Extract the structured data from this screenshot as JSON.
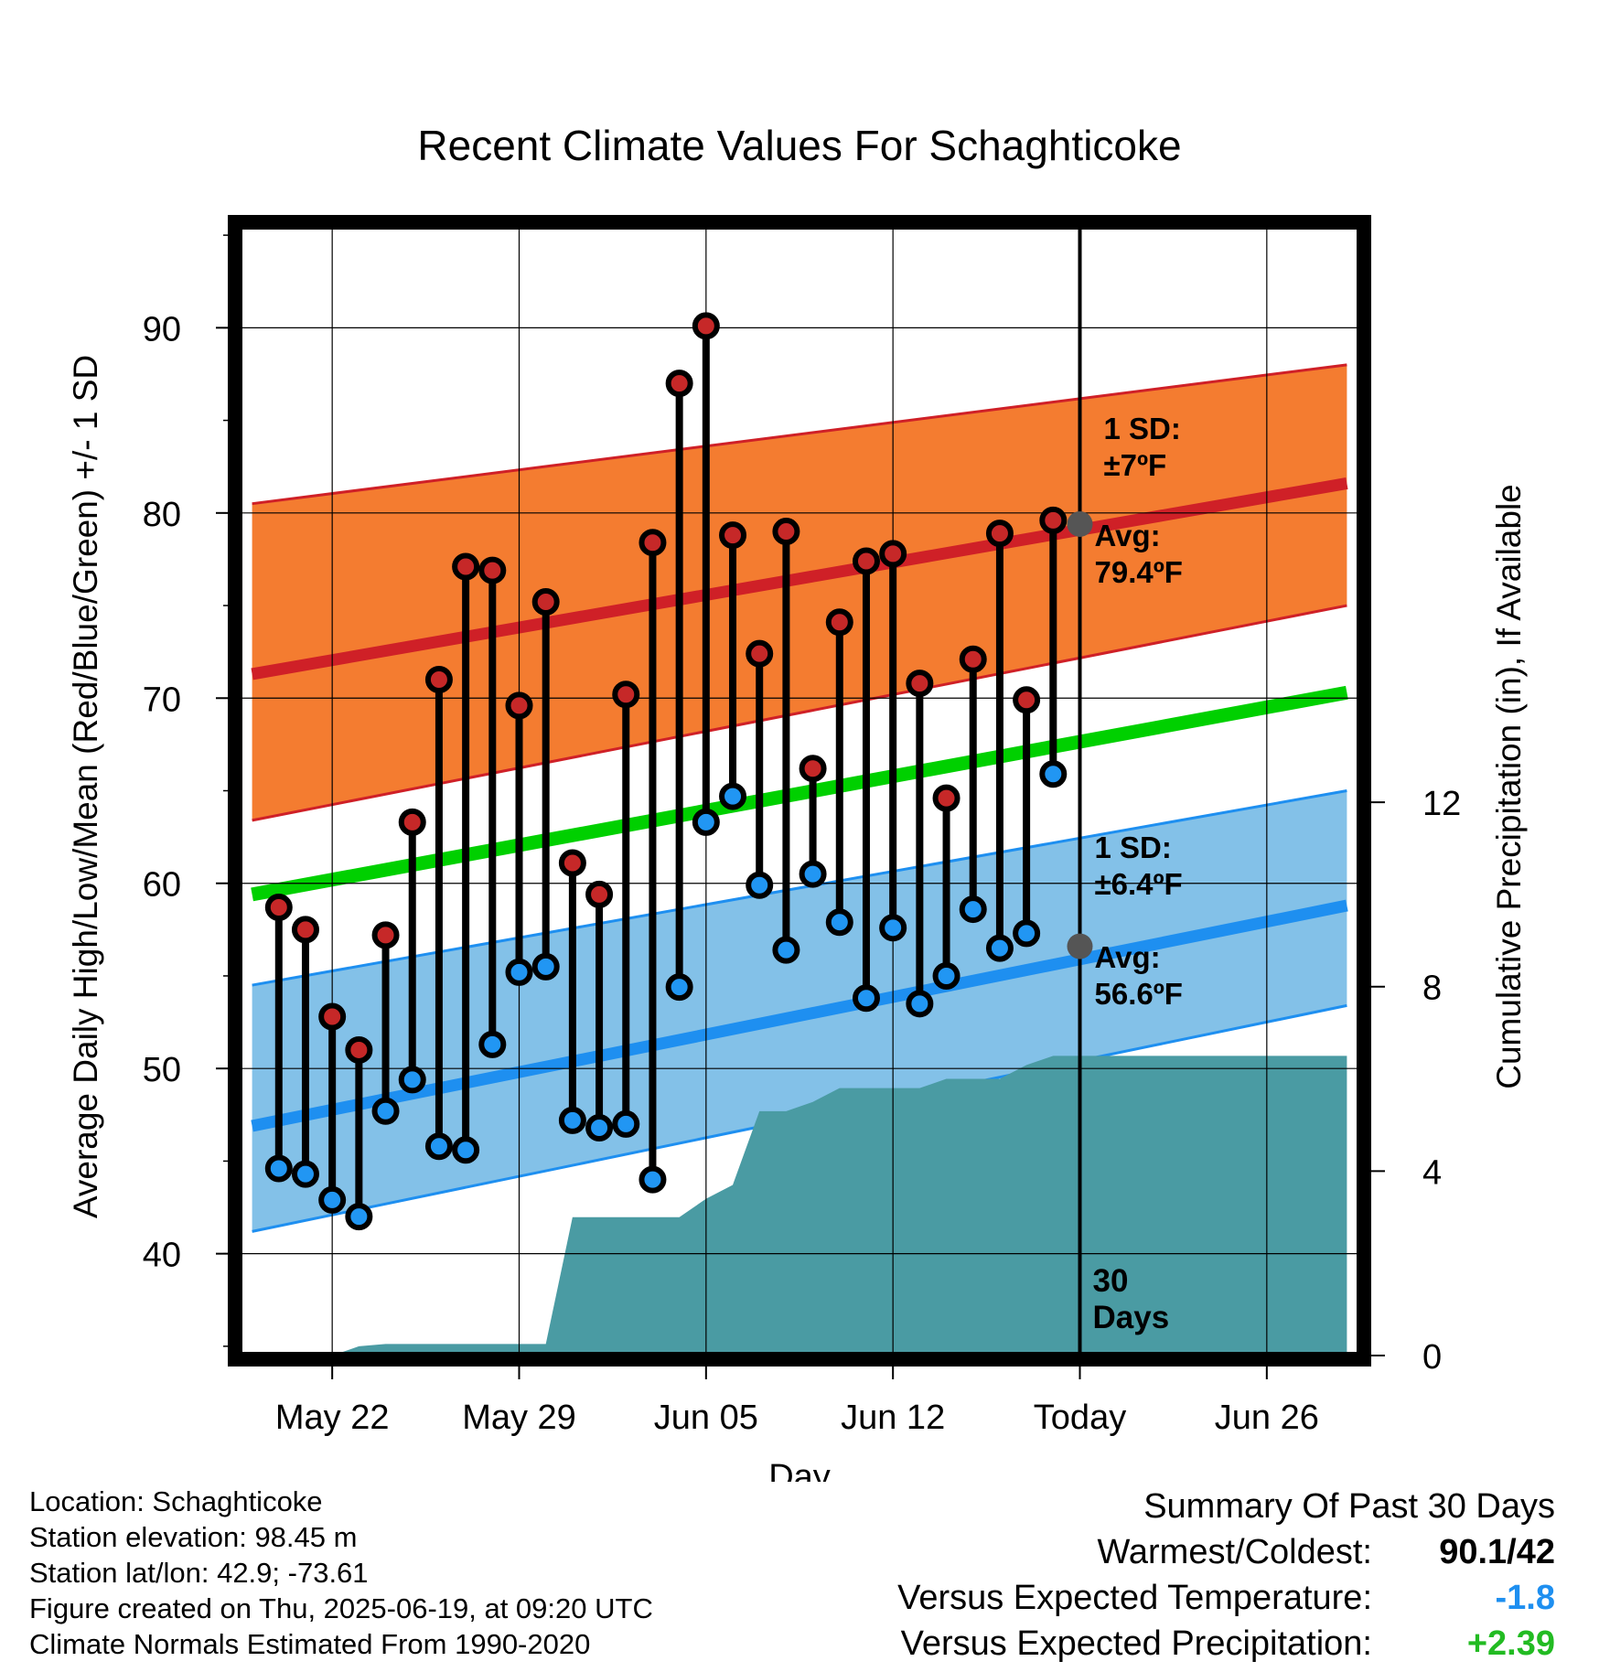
{
  "title": "Recent Climate Values For Schaghticoke",
  "chart_data": {
    "type": "line",
    "title": "Recent Climate Values For Schaghticoke",
    "xlabel": "Day",
    "ylabel": "Average Daily High/Low/Mean (Red/Blue/Green) +/- 1 SD",
    "y2label": "Cumulative Precipitation (in), If Available",
    "ylim": [
      34.5,
      95.5
    ],
    "y2lim": [
      0,
      24.5
    ],
    "xlim": [
      -3.5,
      38.5
    ],
    "x_ticks": [
      {
        "x": 0,
        "label": "May 22"
      },
      {
        "x": 7,
        "label": "May 29"
      },
      {
        "x": 14,
        "label": "Jun 05"
      },
      {
        "x": 21,
        "label": "Jun 12"
      },
      {
        "x": 28,
        "label": "Today"
      },
      {
        "x": 35,
        "label": "Jun 26"
      }
    ],
    "y_ticks": [
      40,
      50,
      60,
      70,
      80,
      90
    ],
    "y2_ticks": [
      0,
      4,
      8,
      12
    ],
    "grid": true,
    "series": [
      {
        "x": [
          -2,
          -1,
          0,
          1,
          2,
          3,
          4,
          5,
          6,
          7,
          8,
          9,
          10,
          11,
          12,
          13,
          14,
          15,
          16,
          17,
          18,
          19,
          20,
          21,
          22,
          23,
          24,
          25,
          26,
          27
        ],
        "values": [
          58.7,
          57.5,
          52.8,
          51.0,
          57.2,
          63.3,
          71.0,
          77.1,
          76.9,
          69.6,
          75.2,
          61.1,
          59.4,
          70.2,
          78.4,
          87.0,
          90.1,
          78.8,
          72.4,
          79.0,
          66.2,
          74.1,
          77.4,
          77.8,
          70.8,
          64.6,
          72.1,
          78.9,
          69.9,
          79.6
        ]
      },
      {
        "x": [
          -2,
          -1,
          0,
          1,
          2,
          3,
          4,
          5,
          6,
          7,
          8,
          9,
          10,
          11,
          12,
          13,
          14,
          15,
          16,
          17,
          18,
          19,
          20,
          21,
          22,
          23,
          24,
          25,
          26,
          27
        ],
        "values": [
          44.6,
          44.3,
          42.9,
          42.0,
          47.7,
          49.4,
          45.8,
          45.6,
          51.3,
          55.2,
          55.5,
          47.2,
          46.8,
          47.0,
          44.0,
          54.4,
          63.3,
          64.7,
          59.9,
          56.4,
          60.5,
          57.9,
          53.8,
          57.6,
          53.5,
          55.0,
          58.6,
          56.5,
          57.3,
          65.9
        ]
      }
    ],
    "normals": {
      "x": [
        -3,
        38
      ],
      "high_avg": [
        71.3,
        81.6
      ],
      "high_plus_1sd": [
        80.5,
        88.0
      ],
      "high_minus_1sd": [
        63.4,
        75.0
      ],
      "low_avg": [
        46.9,
        58.8
      ],
      "low_plus_1sd": [
        54.5,
        65.0
      ],
      "low_minus_1sd": [
        41.2,
        53.4
      ],
      "mean_avg": [
        59.4,
        70.3
      ]
    },
    "precipitation": {
      "x": [
        -3,
        0,
        1,
        2,
        8,
        9,
        10,
        11,
        12,
        13,
        14,
        15,
        16,
        17,
        18,
        19,
        20,
        21,
        22,
        23,
        24,
        25,
        26,
        27,
        38
      ],
      "values": [
        0,
        0,
        0.2,
        0.25,
        0.25,
        3.0,
        3.0,
        3.0,
        3.0,
        3.0,
        3.4,
        3.7,
        5.3,
        5.3,
        5.5,
        5.8,
        5.8,
        5.8,
        5.8,
        6.0,
        6.0,
        6.0,
        6.3,
        6.5,
        6.5
      ]
    },
    "annotations": {
      "high_sd_label": "1 SD:",
      "high_sd_value": "±7ºF",
      "high_avg_label": "Avg:",
      "high_avg_value": "79.4ºF",
      "low_sd_label": "1 SD:",
      "low_sd_value": "±6.4ºF",
      "low_avg_label": "Avg:",
      "low_avg_value": "56.6ºF",
      "days_number": "30",
      "days_word": "Days"
    },
    "today_markers": {
      "x": 28,
      "high": 79.4,
      "low": 56.6
    }
  },
  "colors": {
    "high_band": "#f47c30",
    "high_line": "#cf2027",
    "low_band": "#83c1e8",
    "low_line": "#1e8ff0",
    "mean_line": "#00d000",
    "precip": "#4a9ba3",
    "high_marker": "#c62828",
    "low_marker": "#2196f3",
    "annotation": "#4f4f4f"
  },
  "footer": {
    "location": "Location: Schaghticoke",
    "elevation": "Station elevation: 98.45 m",
    "latlon": "Station lat/lon: 42.9; -73.61",
    "created": "Figure created on Thu, 2025-06-19, at 09:20 UTC",
    "normals": "Climate Normals Estimated From 1990-2020"
  },
  "summary": {
    "heading": "Summary Of Past 30 Days",
    "warmest_label": "Warmest/Coldest:",
    "warmest_value": "90.1/42",
    "temp_label": "Versus Expected Temperature:",
    "temp_value": "-1.8",
    "temp_color": "#1e8ff0",
    "precip_label": "Versus Expected Precipitation:",
    "precip_value": "+2.39",
    "precip_color": "#22bb22"
  }
}
